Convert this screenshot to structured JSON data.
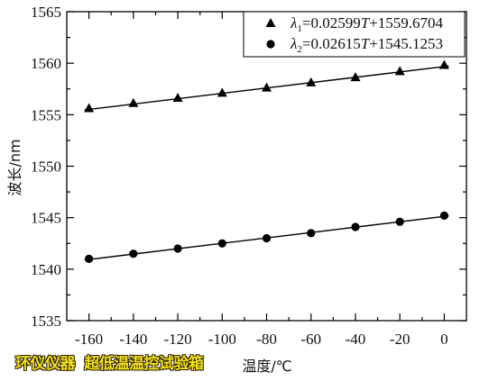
{
  "chart_data": {
    "type": "scatter",
    "xlabel": "温度/℃",
    "ylabel": "波长/nm",
    "xlim": [
      -170,
      10
    ],
    "ylim": [
      1535,
      1565
    ],
    "xticks": [
      -160,
      -140,
      -120,
      -100,
      -80,
      -60,
      -40,
      -20,
      0
    ],
    "yticks": [
      1535,
      1540,
      1545,
      1550,
      1555,
      1560,
      1565
    ],
    "grid": false,
    "legend_position": "top-right",
    "x": [
      -160,
      -140,
      -120,
      -100,
      -80,
      -60,
      -40,
      -20,
      0
    ],
    "series": [
      {
        "name": "λ1=0.02599T+1559.6704",
        "marker": "triangle",
        "color": "#000000",
        "values": [
          1555.6,
          1556.1,
          1556.6,
          1557.1,
          1557.6,
          1558.1,
          1558.6,
          1559.2,
          1559.8
        ],
        "fit": {
          "slope": 0.02599,
          "intercept": 1559.6704
        }
      },
      {
        "name": "λ2=0.02615T+1545.1253",
        "marker": "circle",
        "color": "#000000",
        "values": [
          1541.0,
          1541.5,
          1542.0,
          1542.5,
          1543.0,
          1543.5,
          1544.1,
          1544.6,
          1545.2
        ],
        "fit": {
          "slope": 0.02615,
          "intercept": 1545.1253
        }
      }
    ]
  },
  "watermark": {
    "brand": "环仪仪器",
    "product": "超低温温控试验箱",
    "fill_color": "#f4e21a",
    "outline_color": "#2a1e00"
  }
}
